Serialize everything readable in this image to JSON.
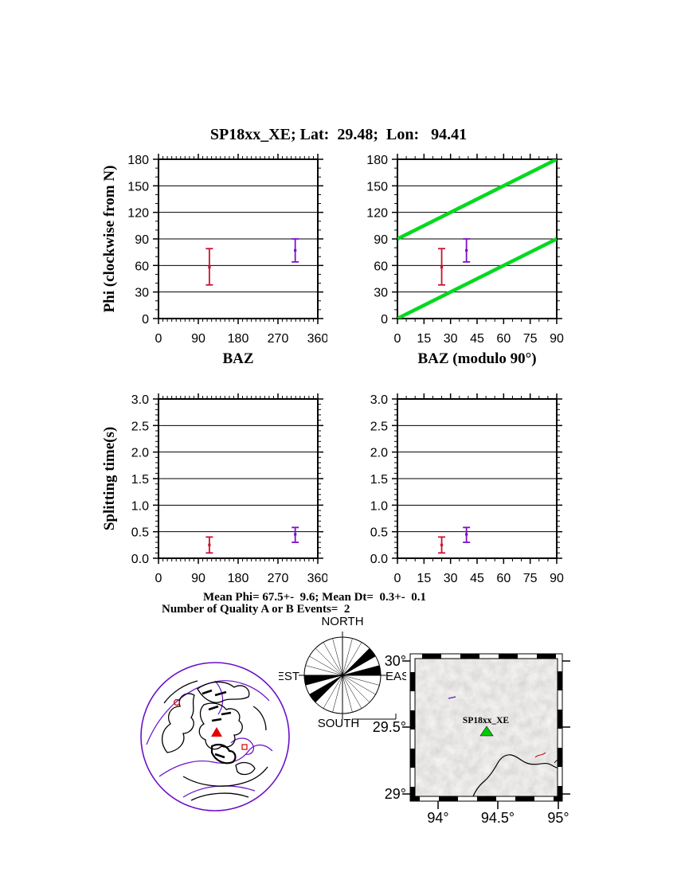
{
  "title": "SP18xx_XE; Lat:  29.48;  Lon:   94.41",
  "summary": {
    "line1": "Mean Phi= 67.5+-  9.6; Mean Dt=  0.3+-  0.1",
    "line2": "Number of Quality A or B Events=  2"
  },
  "colors": {
    "event1": "#cc1133",
    "event2": "#7d10c8",
    "reference_line": "#00d91e",
    "globe_outline": "#6a10c8",
    "plate_boundary": "#6a10c8",
    "globe_station_triangle": "#e60000",
    "map_station_triangle": "#00cc00",
    "frame": "#000000"
  },
  "chart_data": [
    {
      "dom": "chart-phi-baz",
      "type": "scatter",
      "xlabel": "BAZ",
      "ylabel": "Phi (clockwise from N)",
      "xlim": [
        0,
        360
      ],
      "ylim": [
        0,
        180
      ],
      "xticks": [
        0,
        90,
        180,
        270,
        360
      ],
      "yticks": [
        0,
        30,
        60,
        90,
        120,
        150,
        180
      ],
      "ytick_labels": [
        "0",
        "30",
        "60",
        "90",
        "120",
        "150",
        "180"
      ],
      "xminor": 10,
      "yminor": 10,
      "grid": "horizontal",
      "points": [
        {
          "name": "event-1",
          "x": 115,
          "y": 58,
          "ylo": 38,
          "yhi": 79,
          "color": "#cc1133"
        },
        {
          "name": "event-2",
          "x": 309,
          "y": 77,
          "ylo": 64,
          "yhi": 90,
          "color": "#7d10c8"
        }
      ]
    },
    {
      "dom": "chart-phi-bazmod",
      "type": "scatter",
      "xlabel": "BAZ (modulo 90°)",
      "ylabel": "",
      "xlim": [
        0,
        90
      ],
      "ylim": [
        0,
        180
      ],
      "xticks": [
        0,
        15,
        30,
        45,
        60,
        75,
        90
      ],
      "yticks": [
        0,
        30,
        60,
        90,
        120,
        150,
        180
      ],
      "ytick_labels": [
        "0",
        "30",
        "60",
        "90",
        "120",
        "150",
        "180"
      ],
      "xminor": 5,
      "yminor": 10,
      "grid": "horizontal",
      "line_color": "#00d91e",
      "lines": [
        {
          "x1": 0,
          "y1": 0,
          "x2": 90,
          "y2": 90
        },
        {
          "x1": 0,
          "y1": 90,
          "x2": 90,
          "y2": 180
        }
      ],
      "points": [
        {
          "name": "event-1",
          "x": 25,
          "y": 58,
          "ylo": 38,
          "yhi": 79,
          "color": "#cc1133"
        },
        {
          "name": "event-2",
          "x": 39,
          "y": 77,
          "ylo": 64,
          "yhi": 90,
          "color": "#7d10c8"
        }
      ]
    },
    {
      "dom": "chart-dt-baz",
      "type": "scatter",
      "xlabel": "",
      "ylabel": "Splitting time(s)",
      "xlim": [
        0,
        360
      ],
      "ylim": [
        0,
        3
      ],
      "xticks": [
        0,
        90,
        180,
        270,
        360
      ],
      "yticks": [
        0,
        0.5,
        1.0,
        1.5,
        2.0,
        2.5,
        3.0
      ],
      "ytick_labels": [
        "0.0",
        "0.5",
        "1.0",
        "1.5",
        "2.0",
        "2.5",
        "3.0"
      ],
      "xminor": 10,
      "yminor": 0.1,
      "grid": "horizontal",
      "points": [
        {
          "name": "event-1",
          "x": 115,
          "y": 0.25,
          "ylo": 0.1,
          "yhi": 0.4,
          "color": "#cc1133"
        },
        {
          "name": "event-2",
          "x": 309,
          "y": 0.45,
          "ylo": 0.3,
          "yhi": 0.58,
          "color": "#7d10c8"
        }
      ]
    },
    {
      "dom": "chart-dt-bazmod",
      "type": "scatter",
      "xlabel": "",
      "ylabel": "",
      "xlim": [
        0,
        90
      ],
      "ylim": [
        0,
        3
      ],
      "xticks": [
        0,
        15,
        30,
        45,
        60,
        75,
        90
      ],
      "yticks": [
        0,
        0.5,
        1.0,
        1.5,
        2.0,
        2.5,
        3.0
      ],
      "ytick_labels": [
        "0.0",
        "0.5",
        "1.0",
        "1.5",
        "2.0",
        "2.5",
        "3.0"
      ],
      "xminor": 5,
      "yminor": 0.1,
      "grid": "horizontal",
      "points": [
        {
          "name": "event-1",
          "x": 25,
          "y": 0.25,
          "ylo": 0.1,
          "yhi": 0.4,
          "color": "#cc1133"
        },
        {
          "name": "event-2",
          "x": 39,
          "y": 0.45,
          "ylo": 0.3,
          "yhi": 0.58,
          "color": "#7d10c8"
        }
      ]
    }
  ],
  "rose": {
    "labels": {
      "north": "NORTH",
      "east": "EAST",
      "south": "SOUTH",
      "west": "WEST"
    },
    "sector_width_deg": 15,
    "filled_sectors_deg": [
      [
        45,
        60
      ],
      [
        75,
        90
      ],
      [
        225,
        240
      ],
      [
        255,
        270
      ]
    ]
  },
  "map": {
    "lon_labels": [
      "94°",
      "94.5°",
      "95°"
    ],
    "lat_labels": [
      "30°",
      "29.5°",
      "29°"
    ],
    "station_label": "SP18xx_XE"
  }
}
